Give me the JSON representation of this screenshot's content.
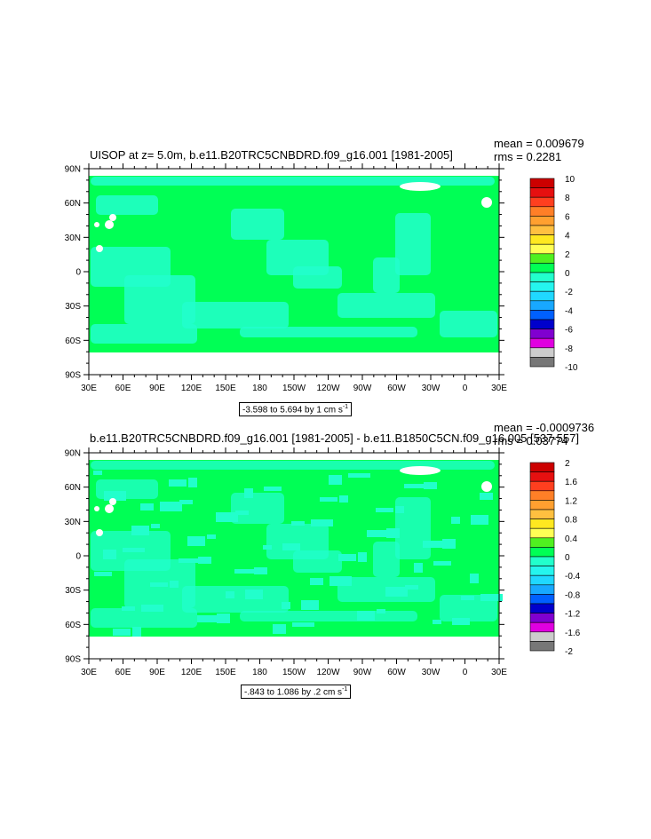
{
  "panels": [
    {
      "title": "UISOP at z=   5.0m, b.e11.B20TRC5CNBDRD.f09_g16.001 [1981-2005]",
      "stats": {
        "mean": "mean = 0.009679",
        "rms": "rms = 0.2281"
      },
      "range_text": "-3.598 to 5.694 by 1 cm s",
      "range_unit_exp": "-1",
      "colorbar_labels": [
        "10",
        "8",
        "6",
        "4",
        "2",
        "0",
        "-2",
        "-4",
        "-6",
        "-8",
        "-10"
      ]
    },
    {
      "title": "b.e11.B20TRC5CNBDRD.f09_g16.001 [1981-2005] - b.e11.B1850C5CN.f09_g16.005 [537-557]",
      "stats": {
        "mean": "mean = -0.0009736",
        "rms": "rms = 0.03774"
      },
      "range_text": "-.843 to 1.086 by .2 cm s",
      "range_unit_exp": "-1",
      "colorbar_labels": [
        "2",
        "1.6",
        "1.2",
        "0.8",
        "0.4",
        "0",
        "-0.4",
        "-0.8",
        "-1.2",
        "-1.6",
        "-2"
      ]
    }
  ],
  "lat_labels": [
    "90N",
    "60N",
    "30N",
    "0",
    "30S",
    "60S",
    "90S"
  ],
  "lon_labels": [
    "30E",
    "60E",
    "90E",
    "120E",
    "150E",
    "180",
    "150W",
    "120W",
    "90W",
    "60W",
    "30W",
    "0",
    "30E"
  ],
  "colorbar_colors": [
    "#cc0000",
    "#e61010",
    "#ff3f1f",
    "#ff7f27",
    "#ffa030",
    "#ffc040",
    "#ffe820",
    "#ffff55",
    "#50f020",
    "#00ff55",
    "#22ffcc",
    "#25f5ee",
    "#20d8ff",
    "#18a8ff",
    "#0060ff",
    "#0000cc",
    "#8000d0",
    "#e000e0",
    "#cccccc",
    "#777777"
  ],
  "map_colors": {
    "positive": "#00ff55",
    "negative": "#22ffcc",
    "missing": "#ffffff"
  }
}
